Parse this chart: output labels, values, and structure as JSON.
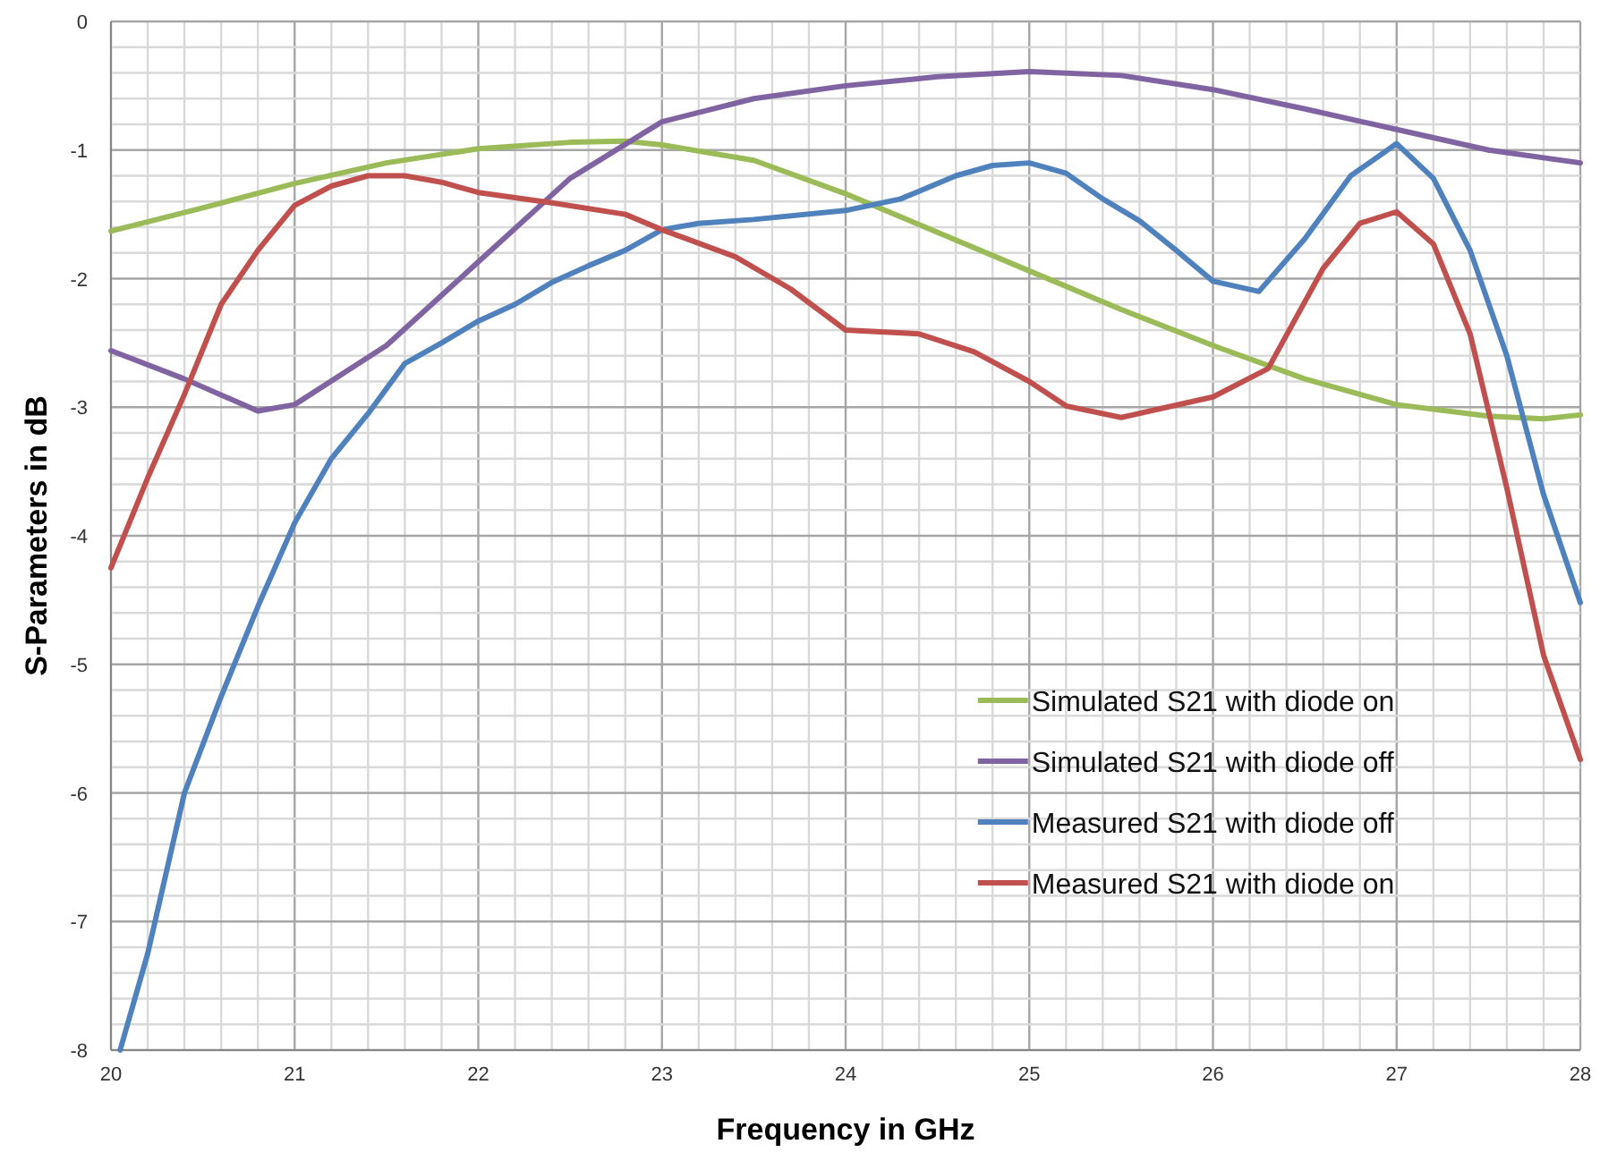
{
  "chart_data": {
    "type": "line",
    "xlabel": "Frequency in GHz",
    "ylabel": "S-Parameters in dB",
    "xlim": [
      20,
      28
    ],
    "ylim": [
      -8,
      0
    ],
    "xticks": [
      20,
      {
        "value": 20.2,
        "label": null
      },
      {
        "value": 20.4,
        "label": null
      },
      {
        "value": 20.6,
        "label": null
      },
      {
        "value": 20.8,
        "label": null
      },
      21,
      {
        "value": 21.2,
        "label": null
      },
      {
        "value": 21.4,
        "label": null
      },
      {
        "value": 21.6,
        "label": null
      },
      {
        "value": 21.8,
        "label": null
      },
      22,
      {
        "value": 22.2,
        "label": null
      },
      {
        "value": 22.4,
        "label": null
      },
      {
        "value": 22.6,
        "label": null
      },
      {
        "value": 22.8,
        "label": null
      },
      23,
      {
        "value": 23.2,
        "label": null
      },
      {
        "value": 23.4,
        "label": null
      },
      {
        "value": 23.6,
        "label": null
      },
      {
        "value": 23.8,
        "label": null
      },
      24,
      {
        "value": 24.2,
        "label": null
      },
      {
        "value": 24.4,
        "label": null
      },
      {
        "value": 24.6,
        "label": null
      },
      {
        "value": 24.8,
        "label": null
      },
      25,
      {
        "value": 25.2,
        "label": null
      },
      {
        "value": 25.4,
        "label": null
      },
      {
        "value": 25.6,
        "label": null
      },
      {
        "value": 25.8,
        "label": null
      },
      26,
      {
        "value": 26.2,
        "label": null
      },
      {
        "value": 26.4,
        "label": null
      },
      {
        "value": 26.6,
        "label": null
      },
      {
        "value": 26.8,
        "label": null
      },
      27,
      {
        "value": 27.2,
        "label": null
      },
      {
        "value": 27.4,
        "label": null
      },
      {
        "value": 27.6,
        "label": null
      },
      {
        "value": 27.8,
        "label": null
      },
      28
    ],
    "yticks": [
      -8,
      {
        "value": -7.8,
        "label": null
      },
      {
        "value": -7.6,
        "label": null
      },
      {
        "value": -7.4,
        "label": null
      },
      {
        "value": -7.2,
        "label": null
      },
      -7,
      {
        "value": -6.8,
        "label": null
      },
      {
        "value": -6.6,
        "label": null
      },
      {
        "value": -6.4,
        "label": null
      },
      {
        "value": -6.2,
        "label": null
      },
      -6,
      {
        "value": -5.8,
        "label": null
      },
      {
        "value": -5.6,
        "label": null
      },
      {
        "value": -5.4,
        "label": null
      },
      {
        "value": -5.2,
        "label": null
      },
      -5,
      {
        "value": -4.8,
        "label": null
      },
      {
        "value": -4.6,
        "label": null
      },
      {
        "value": -4.4,
        "label": null
      },
      {
        "value": -4.2,
        "label": null
      },
      -4,
      {
        "value": -3.8,
        "label": null
      },
      {
        "value": -3.6,
        "label": null
      },
      {
        "value": -3.4,
        "label": null
      },
      {
        "value": -3.2,
        "label": null
      },
      -3,
      {
        "value": -2.8,
        "label": null
      },
      {
        "value": -2.6,
        "label": null
      },
      {
        "value": -2.4,
        "label": null
      },
      {
        "value": -2.2,
        "label": null
      },
      -2,
      {
        "value": -1.8,
        "label": null
      },
      {
        "value": -1.6,
        "label": null
      },
      {
        "value": -1.4,
        "label": null
      },
      {
        "value": -1.2,
        "label": null
      },
      -1,
      {
        "value": -0.8,
        "label": null
      },
      {
        "value": -0.6,
        "label": null
      },
      {
        "value": -0.4,
        "label": null
      },
      {
        "value": -0.2,
        "label": null
      },
      0
    ],
    "grid": true,
    "legend": "bottom right",
    "line_style": "solid",
    "series": [
      {
        "name": "Simulated S21 with diode on",
        "color": "#9bbb59",
        "x": [
          20,
          20.5,
          21,
          21.5,
          22,
          22.5,
          22.8,
          23,
          23.5,
          24,
          24.5,
          25,
          25.5,
          26,
          26.5,
          27,
          27.5,
          27.8,
          28
        ],
        "values": [
          -1.63,
          -1.45,
          -1.26,
          -1.1,
          -0.99,
          -0.94,
          -0.93,
          -0.96,
          -1.08,
          -1.34,
          -1.64,
          -1.94,
          -2.24,
          -2.52,
          -2.78,
          -2.98,
          -3.07,
          -3.09,
          -3.06
        ]
      },
      {
        "name": "Simulated S21 with diode off",
        "color": "#8064a2",
        "x": [
          20,
          20.4,
          20.8,
          21,
          21.5,
          22,
          22.5,
          23,
          23.5,
          24,
          24.5,
          25,
          25.5,
          26,
          26.5,
          27,
          27.5,
          28
        ],
        "values": [
          -2.56,
          -2.78,
          -3.03,
          -2.98,
          -2.52,
          -1.87,
          -1.22,
          -0.78,
          -0.6,
          -0.5,
          -0.43,
          -0.39,
          -0.42,
          -0.53,
          -0.68,
          -0.84,
          -1.0,
          -1.1
        ]
      },
      {
        "name": "Measured S21 with diode off",
        "color": "#4f81bd",
        "x": [
          20.05,
          20.2,
          20.4,
          20.6,
          20.8,
          21,
          21.2,
          21.4,
          21.6,
          21.8,
          22,
          22.2,
          22.4,
          22.6,
          22.8,
          23,
          23.2,
          23.5,
          24,
          24.3,
          24.6,
          24.8,
          25,
          25.2,
          25.4,
          25.6,
          25.8,
          26,
          26.25,
          26.5,
          26.75,
          27,
          27.2,
          27.4,
          27.6,
          27.8,
          28
        ],
        "values": [
          -8,
          -7.25,
          -6.0,
          -5.25,
          -4.55,
          -3.9,
          -3.4,
          -3.05,
          -2.66,
          -2.5,
          -2.33,
          -2.2,
          -2.03,
          -1.9,
          -1.78,
          -1.62,
          -1.57,
          -1.54,
          -1.47,
          -1.38,
          -1.2,
          -1.12,
          -1.1,
          -1.18,
          -1.38,
          -1.55,
          -1.78,
          -2.02,
          -2.1,
          -1.69,
          -1.2,
          -0.95,
          -1.22,
          -1.78,
          -2.6,
          -3.68,
          -4.52
        ]
      },
      {
        "name": "Measured S21 with diode on",
        "color": "#c0504d",
        "x": [
          20,
          20.2,
          20.4,
          20.6,
          20.8,
          21,
          21.2,
          21.4,
          21.6,
          21.8,
          22,
          22.4,
          22.8,
          23,
          23.4,
          23.7,
          24,
          24.4,
          24.7,
          25,
          25.2,
          25.5,
          26,
          26.3,
          26.6,
          26.8,
          27,
          27.2,
          27.4,
          27.6,
          27.8,
          28
        ],
        "values": [
          -4.25,
          -3.55,
          -2.9,
          -2.2,
          -1.78,
          -1.43,
          -1.28,
          -1.2,
          -1.2,
          -1.25,
          -1.33,
          -1.41,
          -1.5,
          -1.62,
          -1.83,
          -2.08,
          -2.4,
          -2.43,
          -2.57,
          -2.8,
          -2.99,
          -3.08,
          -2.92,
          -2.7,
          -1.92,
          -1.57,
          -1.48,
          -1.73,
          -2.43,
          -3.63,
          -4.93,
          -5.74
        ]
      }
    ]
  }
}
